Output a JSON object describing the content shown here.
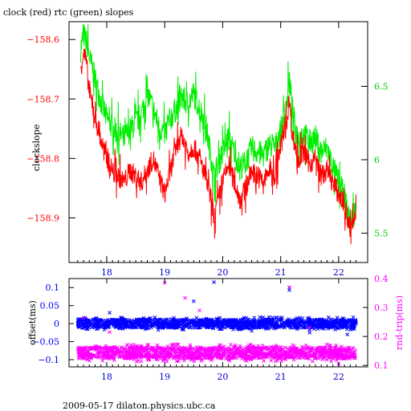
{
  "colors": {
    "clock": "#ff0000",
    "rtc": "#00ee00",
    "offset": "#0000ff",
    "rndtrip": "#ff00ff",
    "axis": "#000000",
    "left_tick_top": "#ff0000",
    "right_tick_top": "#00cc00",
    "left_tick_bottom": "#0000ff",
    "right_tick_bottom": "#ff00ff"
  },
  "chart_data": [
    {
      "type": "line",
      "title": "clock (red) rtc (green) slopes",
      "ylabel": "clockslope",
      "xlim": [
        17.35,
        22.5
      ],
      "ylim": [
        -158.975,
        -158.57
      ],
      "ylim_right": [
        5.3,
        6.94
      ],
      "x_ticks": [
        18,
        19,
        20,
        21,
        22
      ],
      "y_ticks": [
        -158.6,
        -158.7,
        -158.8,
        -158.9
      ],
      "y_ticks_right": [
        6.5,
        6,
        5.5
      ],
      "grid": false,
      "series": [
        {
          "color_key": "clock",
          "x": [
            17.55,
            17.6,
            17.65,
            17.7,
            17.8,
            17.9,
            18.0,
            18.1,
            18.2,
            18.3,
            18.4,
            18.5,
            18.6,
            18.7,
            18.8,
            18.9,
            19.0,
            19.1,
            19.2,
            19.3,
            19.4,
            19.5,
            19.6,
            19.7,
            19.8,
            19.85,
            19.9,
            20.0,
            20.1,
            20.2,
            20.3,
            20.4,
            20.5,
            20.6,
            20.7,
            20.8,
            20.9,
            21.0,
            21.1,
            21.15,
            21.2,
            21.25,
            21.3,
            21.4,
            21.5,
            21.6,
            21.7,
            21.8,
            21.9,
            22.0,
            22.1,
            22.2,
            22.25,
            22.3
          ],
          "y": [
            -158.65,
            -158.62,
            -158.64,
            -158.69,
            -158.73,
            -158.77,
            -158.8,
            -158.82,
            -158.83,
            -158.84,
            -158.82,
            -158.83,
            -158.84,
            -158.82,
            -158.8,
            -158.83,
            -158.86,
            -158.82,
            -158.78,
            -158.76,
            -158.79,
            -158.78,
            -158.8,
            -158.83,
            -158.87,
            -158.9,
            -158.88,
            -158.84,
            -158.81,
            -158.84,
            -158.87,
            -158.85,
            -158.82,
            -158.83,
            -158.84,
            -158.82,
            -158.83,
            -158.78,
            -158.74,
            -158.7,
            -158.76,
            -158.78,
            -158.8,
            -158.79,
            -158.81,
            -158.8,
            -158.83,
            -158.82,
            -158.84,
            -158.86,
            -158.88,
            -158.92,
            -158.91,
            -158.89
          ]
        },
        {
          "color_key": "rtc",
          "axis": "right",
          "x": [
            17.55,
            17.6,
            17.65,
            17.7,
            17.8,
            17.9,
            18.0,
            18.1,
            18.2,
            18.3,
            18.4,
            18.5,
            18.6,
            18.7,
            18.8,
            18.9,
            19.0,
            19.1,
            19.2,
            19.3,
            19.4,
            19.5,
            19.6,
            19.7,
            19.8,
            19.85,
            19.9,
            20.0,
            20.1,
            20.2,
            20.3,
            20.4,
            20.5,
            20.6,
            20.7,
            20.8,
            20.9,
            21.0,
            21.1,
            21.15,
            21.2,
            21.25,
            21.3,
            21.4,
            21.5,
            21.6,
            21.7,
            21.8,
            21.9,
            22.0,
            22.1,
            22.2,
            22.25,
            22.3
          ],
          "y": [
            6.75,
            6.85,
            6.8,
            6.7,
            6.55,
            6.4,
            6.28,
            6.22,
            6.18,
            6.15,
            6.2,
            6.25,
            6.32,
            6.45,
            6.35,
            6.22,
            6.18,
            6.28,
            6.35,
            6.42,
            6.38,
            6.45,
            6.35,
            6.25,
            6.02,
            5.88,
            5.95,
            6.05,
            6.15,
            6.05,
            5.95,
            5.98,
            6.08,
            6.05,
            6.03,
            6.1,
            6.08,
            6.2,
            6.35,
            6.55,
            6.35,
            6.22,
            6.15,
            6.18,
            6.12,
            6.15,
            6.05,
            6.08,
            5.95,
            5.85,
            5.75,
            5.55,
            5.62,
            5.68
          ]
        }
      ]
    },
    {
      "type": "scatter",
      "ylabel": "offset(ms)",
      "ylabel_right": "rnd-trip(ms)",
      "xlim": [
        17.35,
        22.5
      ],
      "ylim": [
        -0.12,
        0.125
      ],
      "ylim_right": [
        0.095,
        0.4
      ],
      "x_ticks": [
        18,
        19,
        20,
        21,
        22
      ],
      "y_ticks": [
        0.1,
        0.05,
        0,
        -0.05,
        -0.1
      ],
      "y_tick_labels": [
        "0.1",
        "0.05",
        "0",
        "−0.05",
        "−0.1"
      ],
      "y_ticks_right": [
        0.4,
        0.3,
        0.2,
        0.1
      ],
      "grid": false,
      "series": [
        {
          "color_key": "offset",
          "marker": "x",
          "band_x": [
            17.5,
            22.3
          ],
          "band_center": 0.0,
          "band_halfwidth": 0.012,
          "outliers": [
            {
              "x": 18.05,
              "y": 0.03
            },
            {
              "x": 19.5,
              "y": 0.062
            },
            {
              "x": 19.85,
              "y": 0.115
            },
            {
              "x": 21.15,
              "y": 0.1
            },
            {
              "x": 21.15,
              "y": 0.093
            },
            {
              "x": 21.5,
              "y": -0.025
            },
            {
              "x": 20.5,
              "y": -0.02
            },
            {
              "x": 22.15,
              "y": -0.03
            },
            {
              "x": 20.8,
              "y": 0.018
            }
          ]
        },
        {
          "color_key": "rndtrip",
          "marker": "x",
          "axis": "right",
          "band_x": [
            17.5,
            22.3
          ],
          "band_center": 0.143,
          "band_halfwidth": 0.02,
          "outliers": [
            {
              "x": 19.0,
              "y": 0.385
            },
            {
              "x": 19.35,
              "y": 0.333
            },
            {
              "x": 19.6,
              "y": 0.29
            },
            {
              "x": 21.15,
              "y": 0.37
            },
            {
              "x": 22.0,
              "y": 0.105
            },
            {
              "x": 21.5,
              "y": 0.23
            },
            {
              "x": 18.05,
              "y": 0.215
            },
            {
              "x": 17.6,
              "y": 0.265
            }
          ]
        }
      ]
    }
  ],
  "footer": "2009-05-17  dilaton.physics.ubc.ca"
}
